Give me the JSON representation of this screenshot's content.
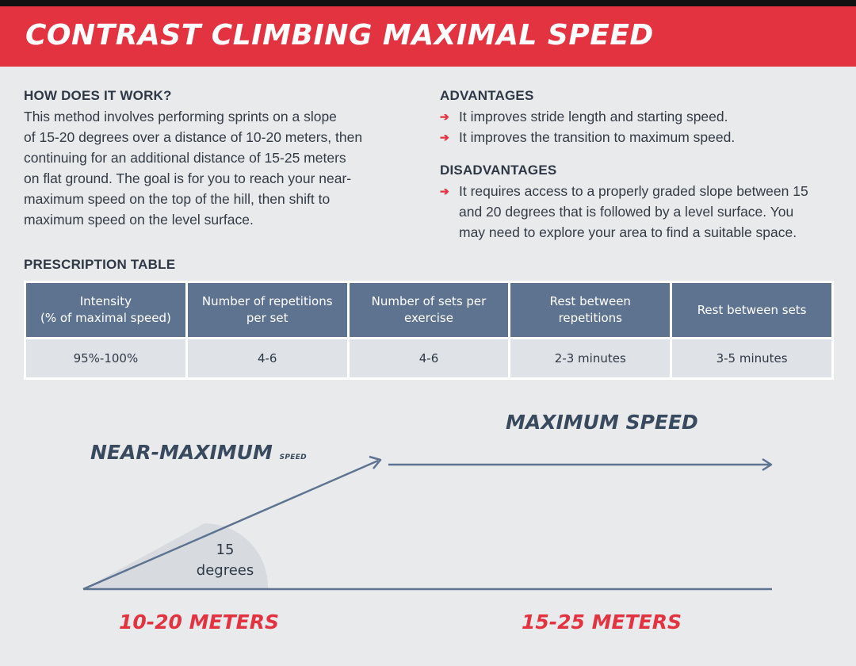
{
  "header": {
    "title": "CONTRAST CLIMBING MAXIMAL SPEED"
  },
  "how": {
    "heading": "HOW DOES IT WORK?",
    "lines": [
      "This method involves performing sprints on a slope",
      "of 15-20 degrees over a distance of 10-20 meters, then",
      "continuing for an additional distance of 15-25 meters",
      "on flat ground. The goal is for you to reach your near-",
      "maximum speed on the top of the hill, then shift to",
      "maximum speed on the level surface."
    ]
  },
  "advantages": {
    "heading": "ADVANTAGES",
    "items": [
      "It improves stride length and starting speed.",
      "It improves the transition to maximum speed."
    ]
  },
  "disadvantages": {
    "heading": "DISADVANTAGES",
    "items": [
      [
        "It requires access to a properly graded slope between 15",
        "and 20 degrees that is followed by a level surface. You",
        "may need to explore your area to find a suitable space."
      ]
    ]
  },
  "prescription": {
    "heading": "PRESCRIPTION TABLE",
    "columns": [
      [
        "Intensity",
        "(% of maximal speed)"
      ],
      [
        "Number of repetitions",
        "per set"
      ],
      [
        "Number of sets per",
        "exercise"
      ],
      [
        "Rest between",
        "repetitions"
      ],
      [
        "Rest between sets"
      ]
    ],
    "row": [
      "95%-100%",
      "4-6",
      "4-6",
      "2-3 minutes",
      "3-5 minutes"
    ]
  },
  "diagram": {
    "near_max": "NEAR-MAXIMUM",
    "near_max_small": "SPEED",
    "max_speed": "MAXIMUM SPEED",
    "angle_value": "15",
    "angle_unit": "degrees",
    "slope_distance": "10-20 METERS",
    "flat_distance": "15-25 METERS",
    "colors": {
      "line": "#5e7390",
      "label": "#3a4a5e",
      "accent": "#e33340",
      "wedge": "#d7dbe0"
    }
  }
}
